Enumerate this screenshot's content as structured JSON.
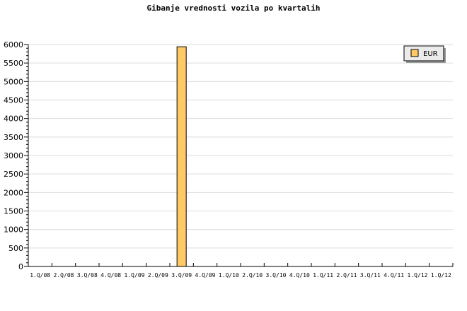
{
  "chart_data": {
    "type": "bar",
    "title": "Gibanje vrednosti vozila po kvartalih",
    "xlabel": "",
    "ylabel": "",
    "categories": [
      "1.Q/08",
      "2.Q/08",
      "3.Q/08",
      "4.Q/08",
      "1.Q/09",
      "2.Q/09",
      "3.Q/09",
      "4.Q/09",
      "1.Q/10",
      "2.Q/10",
      "3.Q/10",
      "4.Q/10",
      "1.Q/11",
      "2.Q/11",
      "3.Q/11",
      "4.Q/11",
      "1.Q/12",
      "1.Q/12"
    ],
    "series": [
      {
        "name": "EUR",
        "color": "#ffc966",
        "values": [
          0,
          0,
          0,
          0,
          0,
          0,
          5940,
          0,
          0,
          0,
          0,
          0,
          0,
          0,
          0,
          0,
          0,
          0
        ]
      }
    ],
    "ylim": [
      0,
      6000
    ],
    "yticks": [
      0,
      500,
      1000,
      1500,
      2000,
      2500,
      3000,
      3500,
      4000,
      4500,
      5000,
      5500,
      6000
    ],
    "grid": true,
    "legend_position": "top-right"
  }
}
